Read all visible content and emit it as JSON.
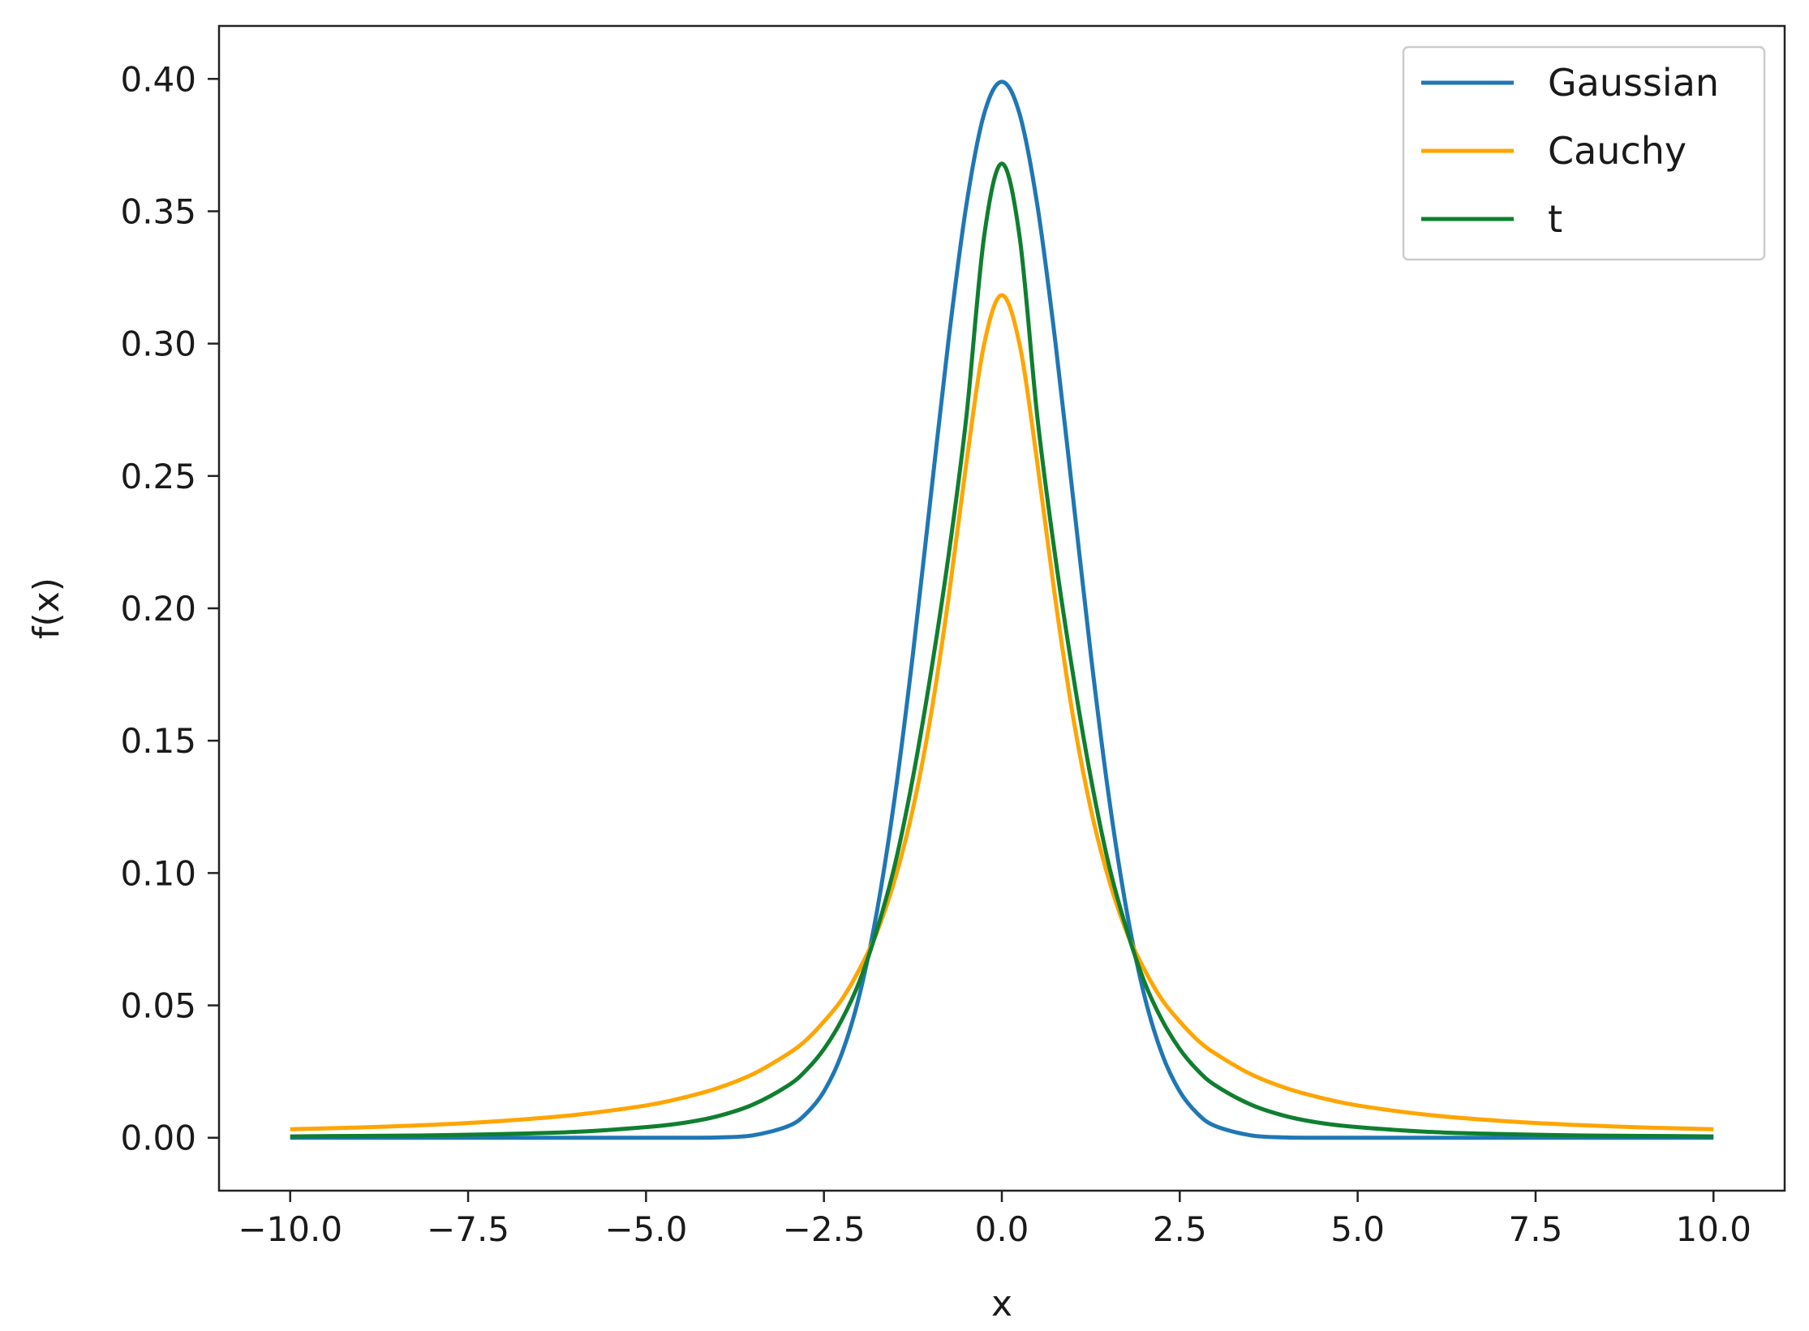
{
  "chart_data": {
    "type": "line",
    "title": "",
    "xlabel": "x",
    "ylabel": "f(x)",
    "xlim": [
      -11.0,
      11.0
    ],
    "ylim": [
      -0.02,
      0.42
    ],
    "x_ticks": [
      "−10.0",
      "−7.5",
      "−5.0",
      "−2.5",
      "0.0",
      "2.5",
      "5.0",
      "7.5",
      "10.0"
    ],
    "x_tick_values": [
      -10.0,
      -7.5,
      -5.0,
      -2.5,
      0.0,
      2.5,
      5.0,
      7.5,
      10.0
    ],
    "y_ticks": [
      "0.00",
      "0.05",
      "0.10",
      "0.15",
      "0.20",
      "0.25",
      "0.30",
      "0.35",
      "0.40"
    ],
    "y_tick_values": [
      0.0,
      0.05,
      0.1,
      0.15,
      0.2,
      0.25,
      0.3,
      0.35,
      0.4
    ],
    "grid": false,
    "legend_position": "top-right",
    "x": [
      -10,
      -9,
      -8,
      -7,
      -6,
      -5,
      -4.5,
      -4,
      -3.5,
      -3,
      -2.75,
      -2.5,
      -2.25,
      -2,
      -1.75,
      -1.5,
      -1.25,
      -1,
      -0.75,
      -0.5,
      -0.25,
      0,
      0.25,
      0.5,
      0.75,
      1,
      1.25,
      1.5,
      1.75,
      2,
      2.25,
      2.5,
      2.75,
      3,
      3.5,
      4,
      4.5,
      5,
      6,
      7,
      8,
      9,
      10
    ],
    "series": [
      {
        "name": "Gaussian",
        "color": "#1f77b4",
        "values": [
          0.0,
          0.0,
          0.0,
          0.0,
          0.0,
          0.0,
          0.0,
          0.0001,
          0.0009,
          0.0044,
          0.0091,
          0.0175,
          0.0317,
          0.054,
          0.0863,
          0.1295,
          0.1826,
          0.242,
          0.3011,
          0.3521,
          0.3867,
          0.3989,
          0.3867,
          0.3521,
          0.3011,
          0.242,
          0.1826,
          0.1295,
          0.0863,
          0.054,
          0.0317,
          0.0175,
          0.0091,
          0.0044,
          0.0009,
          0.0001,
          0.0,
          0.0,
          0.0,
          0.0,
          0.0,
          0.0,
          0.0
        ]
      },
      {
        "name": "Cauchy",
        "color": "#ffa500",
        "values": [
          0.0032,
          0.0039,
          0.0049,
          0.0064,
          0.0086,
          0.0122,
          0.015,
          0.0187,
          0.024,
          0.0318,
          0.0369,
          0.0439,
          0.0522,
          0.0637,
          0.078,
          0.0979,
          0.1242,
          0.1592,
          0.2037,
          0.2546,
          0.2996,
          0.3183,
          0.2996,
          0.2546,
          0.2037,
          0.1592,
          0.1242,
          0.0979,
          0.078,
          0.0637,
          0.0522,
          0.0439,
          0.0369,
          0.0318,
          0.024,
          0.0187,
          0.015,
          0.0122,
          0.0086,
          0.0064,
          0.0049,
          0.0039,
          0.0032
        ]
      },
      {
        "name": "t",
        "color": "#0f7f2f",
        "values": [
          0.0005,
          0.0007,
          0.0009,
          0.0014,
          0.0022,
          0.004,
          0.0055,
          0.0081,
          0.0125,
          0.0198,
          0.0255,
          0.0335,
          0.0445,
          0.0591,
          0.079,
          0.1035,
          0.136,
          0.1751,
          0.2197,
          0.272,
          0.3403,
          0.368,
          0.3403,
          0.272,
          0.2197,
          0.1751,
          0.136,
          0.1035,
          0.079,
          0.0591,
          0.0445,
          0.0335,
          0.0255,
          0.0198,
          0.0125,
          0.0081,
          0.0055,
          0.004,
          0.0022,
          0.0014,
          0.0009,
          0.0007,
          0.0005
        ]
      }
    ]
  }
}
